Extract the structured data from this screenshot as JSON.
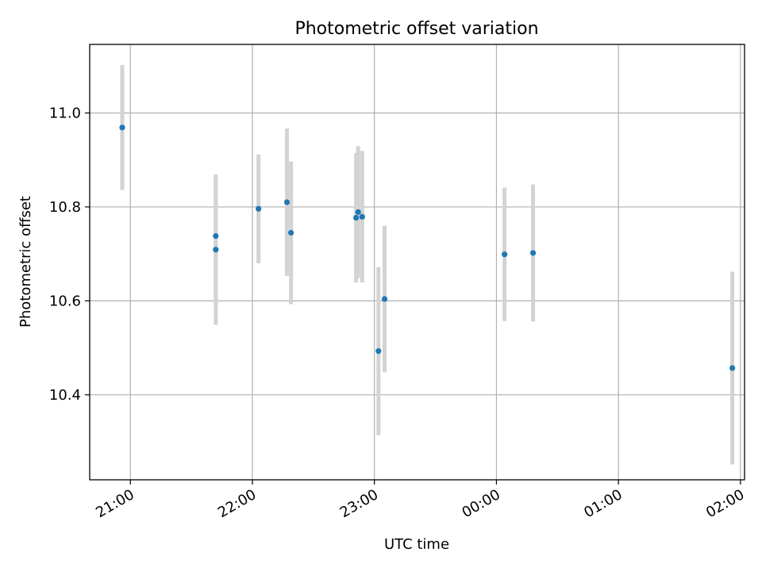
{
  "chart_data": {
    "type": "scatter",
    "title": "Photometric offset variation",
    "xlabel": "UTC time",
    "ylabel": "Photometric offset",
    "grid": true,
    "x_axis": {
      "unit": "UTC time",
      "ticks": [
        "21:00",
        "22:00",
        "23:00",
        "00:00",
        "01:00",
        "02:00"
      ],
      "range": [
        "20:40",
        "02:02"
      ]
    },
    "y_axis": {
      "ticks": [
        "10.4",
        "10.6",
        "10.8",
        "11.0"
      ],
      "tick_values": [
        10.4,
        10.6,
        10.8,
        11.0
      ],
      "range": [
        10.219,
        11.146
      ]
    },
    "colors": {
      "point": "#1f77b4",
      "errorbar": "#d3d3d3",
      "grid": "#b0b0b0"
    },
    "points": [
      {
        "time": "20:56",
        "value": 10.969,
        "err": 0.133
      },
      {
        "time": "21:42",
        "value": 10.738,
        "err": 0.131
      },
      {
        "time": "21:42",
        "value": 10.709,
        "err": 0.16
      },
      {
        "time": "22:03",
        "value": 10.796,
        "err": 0.116
      },
      {
        "time": "22:17",
        "value": 10.81,
        "err": 0.157
      },
      {
        "time": "22:19",
        "value": 10.745,
        "err": 0.152
      },
      {
        "time": "22:51",
        "value": 10.777,
        "err": 0.138
      },
      {
        "time": "22:52",
        "value": 10.789,
        "err": 0.14
      },
      {
        "time": "22:54",
        "value": 10.779,
        "err": 0.14
      },
      {
        "time": "23:02",
        "value": 10.493,
        "err": 0.179
      },
      {
        "time": "23:05",
        "value": 10.604,
        "err": 0.156
      },
      {
        "time": "00:04",
        "value": 10.699,
        "err": 0.142
      },
      {
        "time": "00:18",
        "value": 10.702,
        "err": 0.146
      },
      {
        "time": "01:56",
        "value": 10.457,
        "err": 0.205
      }
    ]
  }
}
